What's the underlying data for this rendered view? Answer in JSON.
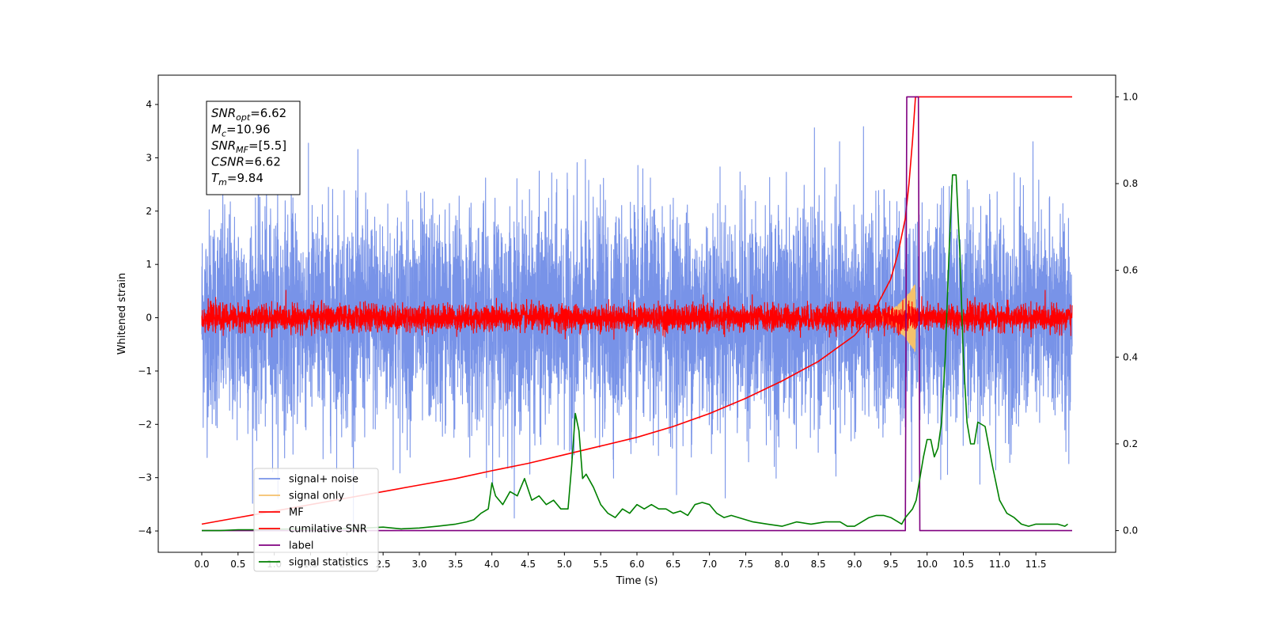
{
  "chart_data": {
    "type": "line",
    "xlabel": "Time (s)",
    "ylabel": "Whitened strain",
    "xlim": [
      -0.6,
      12.6
    ],
    "ylim": [
      -4.4,
      4.55
    ],
    "y2lim": [
      -0.05,
      1.05
    ],
    "x_ticks": [
      0.0,
      0.5,
      1.0,
      1.5,
      2.0,
      2.5,
      3.0,
      3.5,
      4.0,
      4.5,
      5.0,
      5.5,
      6.0,
      6.5,
      7.0,
      7.5,
      8.0,
      8.5,
      9.0,
      9.5,
      10.0,
      10.5,
      11.0,
      11.5
    ],
    "x_tick_labels": [
      "0.0",
      "0.5",
      "1.0",
      "1.5",
      "2.0",
      "2.5",
      "3.0",
      "3.5",
      "4.0",
      "4.5",
      "5.0",
      "5.5",
      "6.0",
      "6.5",
      "7.0",
      "7.5",
      "8.0",
      "8.5",
      "9.0",
      "9.5",
      "10.0",
      "10.5",
      "11.0",
      "11.5"
    ],
    "y_ticks": [
      -4,
      -3,
      -2,
      -1,
      0,
      1,
      2,
      3,
      4
    ],
    "y_tick_labels": [
      "−4",
      "−3",
      "−2",
      "−1",
      "0",
      "1",
      "2",
      "3",
      "4"
    ],
    "y2_ticks": [
      0.0,
      0.2,
      0.4,
      0.6,
      0.8,
      1.0
    ],
    "y2_tick_labels": [
      "0.0",
      "0.2",
      "0.4",
      "0.6",
      "0.8",
      "1.0"
    ],
    "grid": false,
    "legend_position": "lower-left",
    "annotation": {
      "lines": [
        {
          "base": "SNR",
          "sub": "opt",
          "rest": "=6.62"
        },
        {
          "base": "M",
          "sub": "c",
          "rest": "=10.96"
        },
        {
          "base": "SNR",
          "sub": "MF",
          "rest": "=[5.5]"
        },
        {
          "base": "CSNR",
          "sub": "",
          "rest": "=6.62"
        },
        {
          "base": "T",
          "sub": "m",
          "rest": "=9.84"
        }
      ]
    },
    "series": [
      {
        "name": "signal+ noise",
        "axis": "left",
        "color": "#7893e8",
        "style": "noise",
        "x_range": [
          0,
          12
        ],
        "std": 1.0,
        "max_abs": 4.2,
        "points": 6000
      },
      {
        "name": "signal only",
        "axis": "left",
        "color": "#f5c16b",
        "style": "chirp",
        "x_range": [
          9.0,
          9.84
        ],
        "peak": 0.65
      },
      {
        "name": "MF",
        "axis": "left",
        "color": "#ff0000",
        "style": "noise",
        "x_range": [
          0,
          12
        ],
        "std": 0.12,
        "max_abs": 0.8,
        "points": 6000
      },
      {
        "name": "cumilative SNR",
        "axis": "right",
        "color": "#ff0000",
        "x": [
          0.0,
          0.5,
          1.0,
          1.5,
          2.0,
          2.5,
          3.0,
          3.5,
          4.0,
          4.5,
          5.0,
          5.5,
          6.0,
          6.5,
          7.0,
          7.5,
          8.0,
          8.5,
          9.0,
          9.25,
          9.5,
          9.6,
          9.7,
          9.75,
          9.8,
          9.84,
          9.85,
          12.0
        ],
        "values": [
          0.015,
          0.03,
          0.045,
          0.06,
          0.075,
          0.09,
          0.105,
          0.12,
          0.138,
          0.155,
          0.175,
          0.195,
          0.215,
          0.24,
          0.27,
          0.305,
          0.345,
          0.39,
          0.45,
          0.5,
          0.58,
          0.64,
          0.72,
          0.8,
          0.9,
          1.0,
          1.0,
          1.0
        ]
      },
      {
        "name": "label",
        "axis": "right",
        "color": "#800080",
        "x": [
          0.0,
          9.7,
          9.72,
          9.78,
          9.88,
          9.9,
          12.0
        ],
        "values": [
          0.0,
          0.0,
          1.0,
          1.0,
          1.0,
          0.0,
          0.0
        ]
      },
      {
        "name": "signal statistics",
        "axis": "right",
        "color": "#008000",
        "x": [
          0.0,
          0.25,
          0.5,
          0.75,
          1.0,
          1.25,
          1.5,
          1.75,
          2.0,
          2.25,
          2.5,
          2.75,
          3.0,
          3.25,
          3.5,
          3.65,
          3.75,
          3.85,
          3.95,
          4.0,
          4.05,
          4.15,
          4.25,
          4.35,
          4.45,
          4.55,
          4.65,
          4.75,
          4.85,
          4.95,
          5.05,
          5.1,
          5.15,
          5.2,
          5.25,
          5.3,
          5.4,
          5.5,
          5.6,
          5.7,
          5.8,
          5.9,
          6.0,
          6.1,
          6.2,
          6.3,
          6.4,
          6.5,
          6.6,
          6.7,
          6.8,
          6.9,
          7.0,
          7.1,
          7.2,
          7.3,
          7.4,
          7.5,
          7.6,
          7.8,
          8.0,
          8.2,
          8.4,
          8.6,
          8.8,
          8.9,
          9.0,
          9.1,
          9.2,
          9.3,
          9.4,
          9.5,
          9.6,
          9.65,
          9.7,
          9.8,
          9.85,
          9.9,
          9.95,
          10.0,
          10.05,
          10.1,
          10.15,
          10.2,
          10.25,
          10.3,
          10.35,
          10.4,
          10.45,
          10.5,
          10.55,
          10.6,
          10.65,
          10.7,
          10.8,
          10.9,
          11.0,
          11.1,
          11.2,
          11.3,
          11.4,
          11.5,
          11.6,
          11.7,
          11.8,
          11.9,
          11.94
        ],
        "values": [
          0.0,
          0.0,
          0.002,
          0.002,
          0.003,
          0.004,
          0.004,
          0.003,
          0.005,
          0.006,
          0.008,
          0.004,
          0.006,
          0.01,
          0.015,
          0.02,
          0.025,
          0.04,
          0.05,
          0.11,
          0.08,
          0.06,
          0.09,
          0.08,
          0.12,
          0.07,
          0.08,
          0.06,
          0.07,
          0.05,
          0.05,
          0.15,
          0.27,
          0.23,
          0.12,
          0.13,
          0.1,
          0.06,
          0.04,
          0.03,
          0.05,
          0.04,
          0.06,
          0.05,
          0.06,
          0.05,
          0.05,
          0.04,
          0.045,
          0.035,
          0.06,
          0.065,
          0.06,
          0.04,
          0.03,
          0.035,
          0.03,
          0.025,
          0.02,
          0.015,
          0.01,
          0.02,
          0.015,
          0.02,
          0.02,
          0.01,
          0.01,
          0.02,
          0.03,
          0.035,
          0.035,
          0.03,
          0.02,
          0.015,
          0.03,
          0.05,
          0.07,
          0.12,
          0.17,
          0.21,
          0.21,
          0.17,
          0.19,
          0.25,
          0.4,
          0.63,
          0.82,
          0.82,
          0.65,
          0.4,
          0.25,
          0.2,
          0.2,
          0.25,
          0.24,
          0.15,
          0.07,
          0.04,
          0.03,
          0.015,
          0.01,
          0.015,
          0.015,
          0.015,
          0.015,
          0.01,
          0.015
        ]
      }
    ]
  }
}
